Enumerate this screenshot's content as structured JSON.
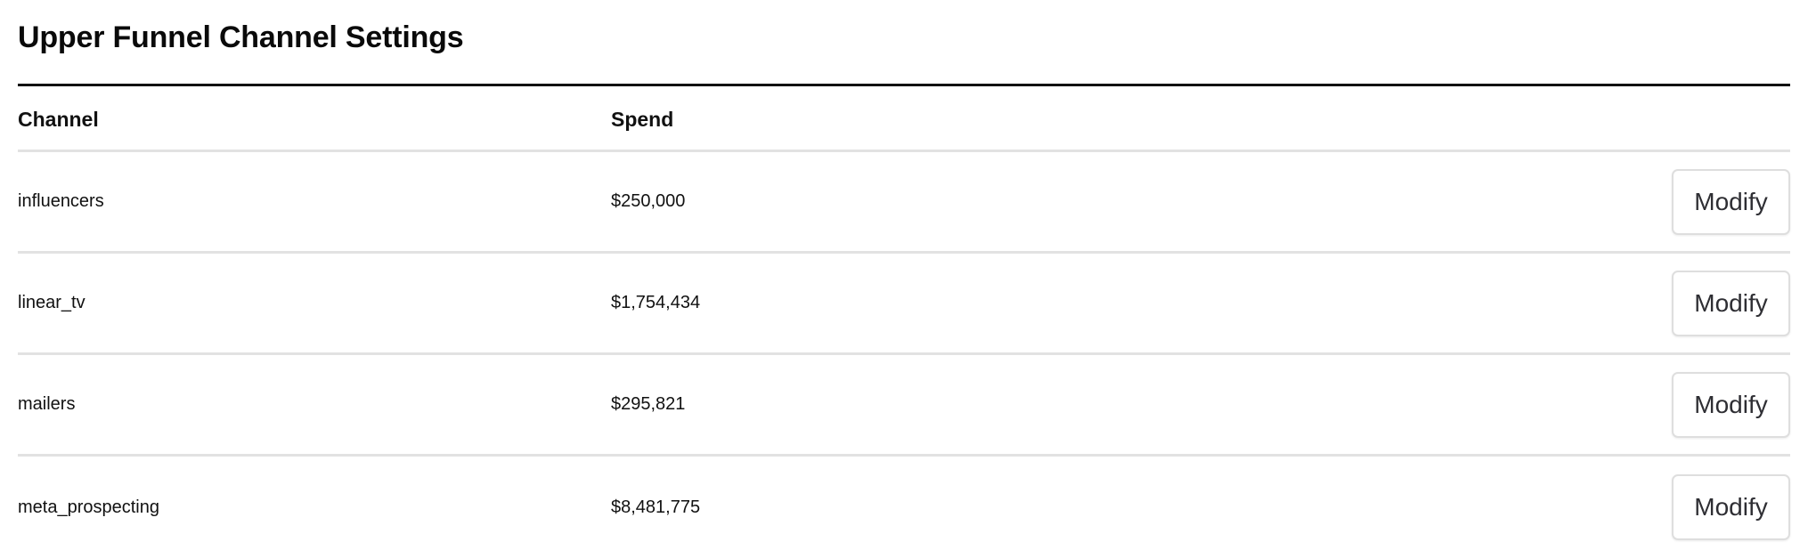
{
  "page": {
    "title": "Upper Funnel Channel Settings"
  },
  "table": {
    "columns": {
      "channel": "Channel",
      "spend": "Spend"
    },
    "rows": [
      {
        "channel": "influencers",
        "spend": "$250,000",
        "action_label": "Modify"
      },
      {
        "channel": "linear_tv",
        "spend": "$1,754,434",
        "action_label": "Modify"
      },
      {
        "channel": "mailers",
        "spend": "$295,821",
        "action_label": "Modify"
      },
      {
        "channel": "meta_prospecting",
        "spend": "$8,481,775",
        "action_label": "Modify"
      }
    ]
  }
}
